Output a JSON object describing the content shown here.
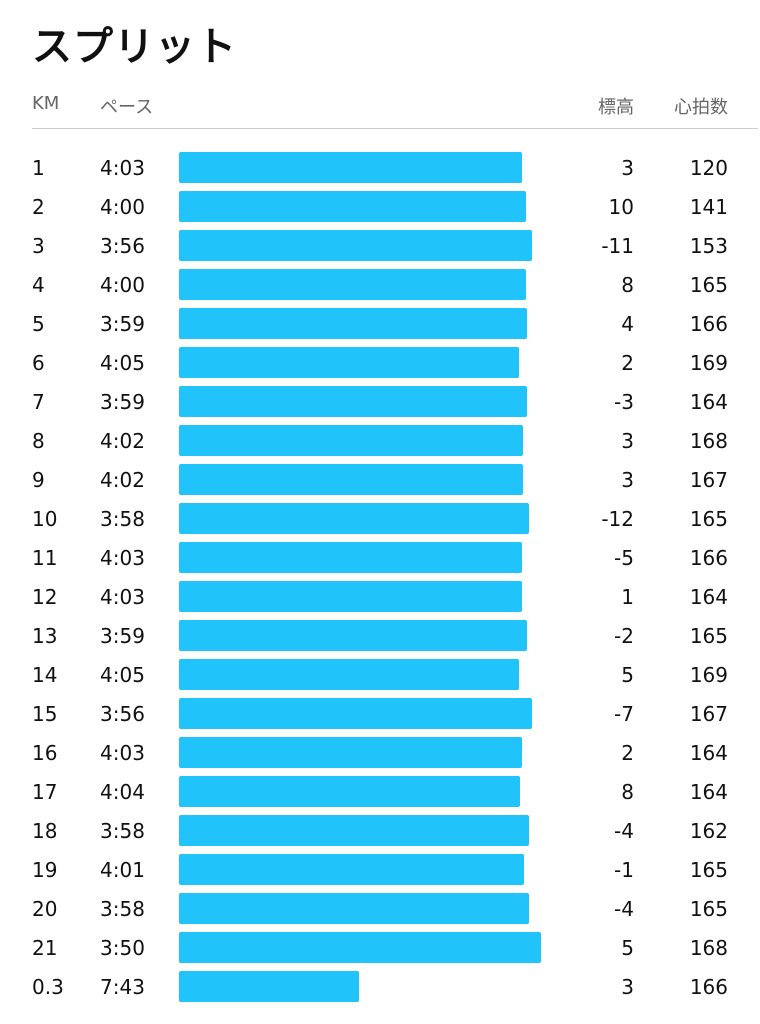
{
  "header": {
    "title": "スプリット"
  },
  "table": {
    "columns": [
      "KM",
      "ペース",
      "標高",
      "心拍数"
    ],
    "rows": [
      [
        1,
        "4:03",
        3,
        120
      ],
      [
        2,
        "4:00",
        10,
        141
      ],
      [
        3,
        "3:56",
        -11,
        153
      ],
      [
        4,
        "4:00",
        8,
        165
      ],
      [
        5,
        "3:59",
        4,
        166
      ],
      [
        6,
        "4:05",
        2,
        169
      ],
      [
        7,
        "3:59",
        -3,
        164
      ],
      [
        8,
        "4:02",
        3,
        168
      ],
      [
        9,
        "4:02",
        3,
        167
      ],
      [
        10,
        "3:58",
        -12,
        165
      ],
      [
        11,
        "4:03",
        -5,
        166
      ],
      [
        12,
        "4:03",
        1,
        164
      ],
      [
        13,
        "3:59",
        -2,
        165
      ],
      [
        14,
        "4:05",
        5,
        169
      ],
      [
        15,
        "3:56",
        -7,
        167
      ],
      [
        16,
        "4:03",
        2,
        164
      ],
      [
        17,
        "4:04",
        8,
        164
      ],
      [
        18,
        "3:58",
        -4,
        162
      ],
      [
        19,
        "4:01",
        -1,
        165
      ],
      [
        20,
        "3:58",
        -4,
        165
      ],
      [
        21,
        "3:50",
        5,
        168
      ],
      [
        0.3,
        "7:43",
        3,
        166
      ]
    ]
  }
}
